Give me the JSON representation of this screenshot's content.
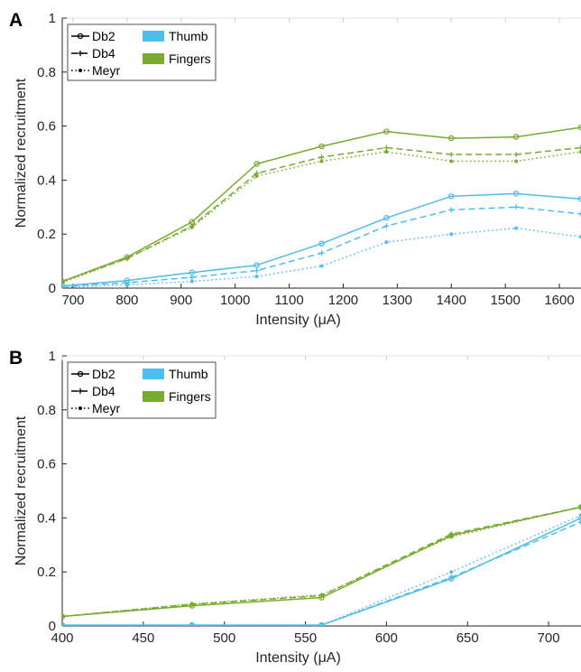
{
  "colors": {
    "thumb": "#4DBEEE",
    "fingers": "#77AC30",
    "axis": "#262626",
    "legend_black": "#000000"
  },
  "chart_data": [
    {
      "type": "line",
      "panel_label": "A",
      "xlabel": "Intensity (μA)",
      "ylabel": "Normalized recruitment",
      "xlim": [
        680,
        1640
      ],
      "ylim": [
        0,
        1
      ],
      "xticks": [
        700,
        800,
        900,
        1000,
        1100,
        1200,
        1300,
        1400,
        1500,
        1600
      ],
      "xtick_labels": [
        "700",
        "800",
        "900",
        "1000",
        "1100",
        "1200",
        "1300",
        "1400",
        "1500",
        "1600"
      ],
      "yticks": [
        0,
        0.2,
        0.4,
        0.6,
        0.8,
        1
      ],
      "ytick_labels": [
        "0",
        "0.2",
        "0.4",
        "0.6",
        "0.8",
        "1"
      ],
      "grid": false,
      "legend": {
        "placement": "top-left",
        "methods": [
          {
            "name": "Db2",
            "dash": "solid",
            "marker": "o"
          },
          {
            "name": "Db4",
            "dash": "dashed",
            "marker": "+"
          },
          {
            "name": "Meyr",
            "dash": "dotted",
            "marker": "."
          }
        ],
        "groups": [
          {
            "name": "Thumb",
            "color_key": "thumb"
          },
          {
            "name": "Fingers",
            "color_key": "fingers"
          }
        ]
      },
      "x": [
        680,
        800,
        920,
        1040,
        1160,
        1280,
        1400,
        1520,
        1640
      ],
      "series": [
        {
          "group": "fingers",
          "method": "Db2",
          "values": [
            0.025,
            0.115,
            0.245,
            0.46,
            0.525,
            0.58,
            0.555,
            0.56,
            0.595
          ]
        },
        {
          "group": "fingers",
          "method": "Db4",
          "values": [
            0.025,
            0.11,
            0.23,
            0.425,
            0.485,
            0.52,
            0.495,
            0.495,
            0.52
          ]
        },
        {
          "group": "fingers",
          "method": "Meyr",
          "values": [
            0.02,
            0.11,
            0.225,
            0.415,
            0.47,
            0.505,
            0.47,
            0.47,
            0.505
          ]
        },
        {
          "group": "thumb",
          "method": "Db2",
          "values": [
            0.008,
            0.028,
            0.058,
            0.085,
            0.165,
            0.26,
            0.34,
            0.35,
            0.33
          ]
        },
        {
          "group": "thumb",
          "method": "Db4",
          "values": [
            0.006,
            0.02,
            0.04,
            0.065,
            0.13,
            0.23,
            0.29,
            0.3,
            0.275
          ]
        },
        {
          "group": "thumb",
          "method": "Meyr",
          "values": [
            0.004,
            0.012,
            0.025,
            0.043,
            0.082,
            0.17,
            0.2,
            0.222,
            0.19
          ]
        }
      ]
    },
    {
      "type": "line",
      "panel_label": "B",
      "xlabel": "Intensity (μA)",
      "ylabel": "Normalized recruitment",
      "xlim": [
        400,
        720
      ],
      "ylim": [
        0,
        1
      ],
      "xticks": [
        400,
        450,
        500,
        550,
        600,
        650,
        700
      ],
      "xtick_labels": [
        "400",
        "450",
        "500",
        "550",
        "600",
        "650",
        "700"
      ],
      "yticks": [
        0,
        0.2,
        0.4,
        0.6,
        0.8,
        1
      ],
      "ytick_labels": [
        "0",
        "0.2",
        "0.4",
        "0.6",
        "0.8",
        "1"
      ],
      "grid": false,
      "legend": {
        "placement": "top-left",
        "methods": [
          {
            "name": "Db2",
            "dash": "solid",
            "marker": "o"
          },
          {
            "name": "Db4",
            "dash": "dashed",
            "marker": "+"
          },
          {
            "name": "Meyr",
            "dash": "dotted",
            "marker": "."
          }
        ],
        "groups": [
          {
            "name": "Thumb",
            "color_key": "thumb"
          },
          {
            "name": "Fingers",
            "color_key": "fingers"
          }
        ]
      },
      "x": [
        400,
        480,
        560,
        640,
        720
      ],
      "series": [
        {
          "group": "fingers",
          "method": "Db2",
          "values": [
            0.035,
            0.075,
            0.105,
            0.335,
            0.44
          ]
        },
        {
          "group": "fingers",
          "method": "Db4",
          "values": [
            0.035,
            0.08,
            0.112,
            0.34,
            0.44
          ]
        },
        {
          "group": "fingers",
          "method": "Meyr",
          "values": [
            0.035,
            0.082,
            0.115,
            0.33,
            0.44
          ]
        },
        {
          "group": "thumb",
          "method": "Db2",
          "values": [
            0.003,
            0.003,
            0.003,
            0.175,
            0.4
          ]
        },
        {
          "group": "thumb",
          "method": "Db4",
          "values": [
            0.003,
            0.003,
            0.003,
            0.18,
            0.385
          ]
        },
        {
          "group": "thumb",
          "method": "Meyr",
          "values": [
            0.003,
            0.003,
            0.003,
            0.2,
            0.41
          ]
        }
      ]
    }
  ]
}
